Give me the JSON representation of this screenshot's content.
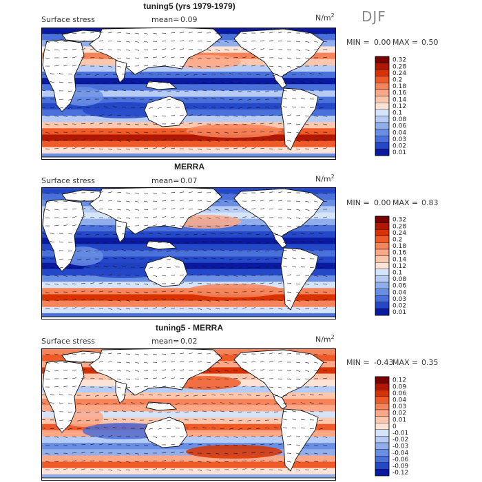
{
  "season": "DJF",
  "panels": [
    {
      "title": "tuning5 (yrs 1979-1979)",
      "field": "Surface stress",
      "mean_label": "mean=",
      "mean_value": "0.09",
      "units": "N/m",
      "units_sup": "2",
      "min_label": "MIN =",
      "min_value": "0.00",
      "max_label": "MAX =",
      "max_value": "0.50",
      "levels": [
        "0.32",
        "0.28",
        "0.24",
        "0.2",
        "0.18",
        "0.16",
        "0.14",
        "0.12",
        "0.1",
        "0.08",
        "0.06",
        "0.04",
        "0.03",
        "0.02",
        "0.01"
      ],
      "colors": [
        "#7a0000",
        "#b01800",
        "#d83200",
        "#ee5a28",
        "#f6845a",
        "#fca888",
        "#fdc7ae",
        "#fde2d6",
        "#d6e4fa",
        "#b6ccf4",
        "#90aeec",
        "#6a8ee4",
        "#4a70da",
        "#2448c8",
        "#0a1aa0"
      ]
    },
    {
      "title": "MERRA",
      "field": "Surface stress",
      "mean_label": "mean=",
      "mean_value": "0.07",
      "units": "N/m",
      "units_sup": "2",
      "min_label": "MIN =",
      "min_value": "0.00",
      "max_label": "MAX =",
      "max_value": "0.83",
      "levels": [
        "0.32",
        "0.28",
        "0.24",
        "0.2",
        "0.18",
        "0.16",
        "0.14",
        "0.12",
        "0.1",
        "0.08",
        "0.06",
        "0.04",
        "0.03",
        "0.02",
        "0.01"
      ],
      "colors": [
        "#7a0000",
        "#b01800",
        "#d83200",
        "#ee5a28",
        "#f6845a",
        "#fca888",
        "#fdc7ae",
        "#fde2d6",
        "#d6e4fa",
        "#b6ccf4",
        "#90aeec",
        "#6a8ee4",
        "#4a70da",
        "#2448c8",
        "#0a1aa0"
      ]
    },
    {
      "title": "tuning5 - MERRA",
      "field": "Surface stress",
      "mean_label": "mean=",
      "mean_value": "0.02",
      "units": "N/m",
      "units_sup": "2",
      "min_label": "MIN =",
      "min_value": "-0.43",
      "max_label": "MAX =",
      "max_value": "0.35",
      "levels": [
        "0.12",
        "0.09",
        "0.06",
        "0.04",
        "0.03",
        "0.02",
        "0.01",
        "0",
        "-0.01",
        "-0.02",
        "-0.03",
        "-0.04",
        "-0.06",
        "-0.09",
        "-0.12"
      ],
      "colors": [
        "#7a0000",
        "#b01800",
        "#d83200",
        "#ee5a28",
        "#f6845a",
        "#fca888",
        "#fdc7ae",
        "#fde2d6",
        "#d6e4fa",
        "#b6ccf4",
        "#90aeec",
        "#6a8ee4",
        "#4a70da",
        "#2448c8",
        "#0a1aa0"
      ]
    }
  ],
  "chart_data": [
    {
      "type": "heatmap",
      "title": "tuning5 (yrs 1979-1979)",
      "subtitle": "Surface stress",
      "units": "N/m2",
      "mean": 0.09,
      "min": 0.0,
      "max": 0.5,
      "colorbar_levels": [
        0.32,
        0.28,
        0.24,
        0.2,
        0.18,
        0.16,
        0.14,
        0.12,
        0.1,
        0.08,
        0.06,
        0.04,
        0.03,
        0.02,
        0.01
      ]
    },
    {
      "type": "heatmap",
      "title": "MERRA",
      "subtitle": "Surface stress",
      "units": "N/m2",
      "mean": 0.07,
      "min": 0.0,
      "max": 0.83,
      "colorbar_levels": [
        0.32,
        0.28,
        0.24,
        0.2,
        0.18,
        0.16,
        0.14,
        0.12,
        0.1,
        0.08,
        0.06,
        0.04,
        0.03,
        0.02,
        0.01
      ]
    },
    {
      "type": "heatmap",
      "title": "tuning5 - MERRA",
      "subtitle": "Surface stress",
      "units": "N/m2",
      "mean": 0.02,
      "min": -0.43,
      "max": 0.35,
      "colorbar_levels": [
        0.12,
        0.09,
        0.06,
        0.04,
        0.03,
        0.02,
        0.01,
        0,
        -0.01,
        -0.02,
        -0.03,
        -0.04,
        -0.06,
        -0.09,
        -0.12
      ]
    }
  ]
}
